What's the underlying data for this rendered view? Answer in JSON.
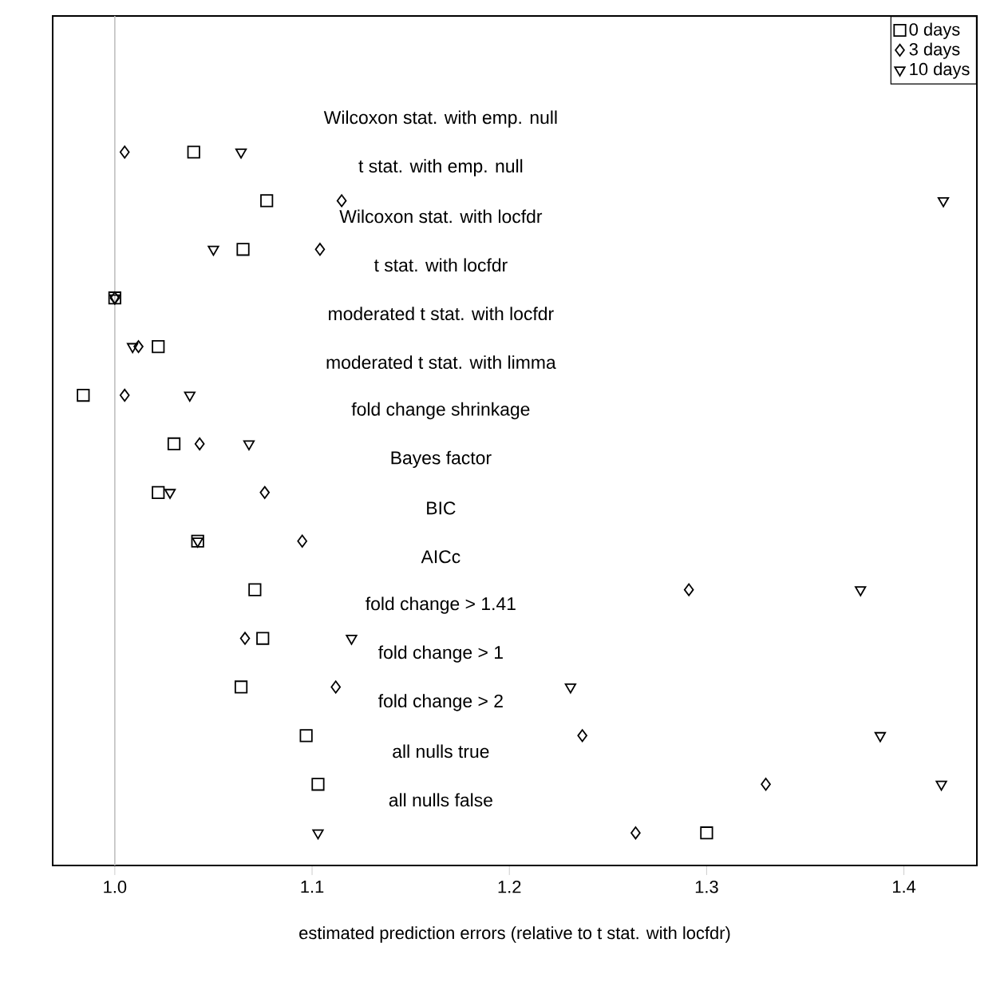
{
  "chart_data": {
    "type": "scatter",
    "orientation": "horizontal",
    "xlabel": "estimated prediction errors (relative to t stat. with locfdr)",
    "categories": [
      "Wilcoxon stat. with emp. null",
      "t stat. with emp. null",
      "Wilcoxon stat. with locfdr",
      "t stat. with locfdr",
      "moderated t stat. with locfdr",
      "moderated t stat. with limma",
      "fold change shrinkage",
      "Bayes factor",
      "BIC",
      "AICc",
      "fold change > 1.41",
      "fold change > 1",
      "fold change > 2",
      "all nulls true",
      "all nulls false"
    ],
    "series": [
      {
        "name": "0 days",
        "color": "#000000",
        "marker": "square",
        "values": [
          1.04,
          1.077,
          1.065,
          1.0,
          1.022,
          0.984,
          1.03,
          1.022,
          1.042,
          1.071,
          1.075,
          1.064,
          1.097,
          1.103,
          1.3
        ]
      },
      {
        "name": "3 days",
        "color": "#000000",
        "marker": "diamond",
        "values": [
          1.005,
          1.115,
          1.104,
          1.0,
          1.012,
          1.005,
          1.043,
          1.076,
          1.095,
          1.291,
          1.066,
          1.112,
          1.237,
          1.33,
          1.264
        ]
      },
      {
        "name": "10 days",
        "color": "#000000",
        "marker": "triangle",
        "values": [
          1.064,
          1.42,
          1.05,
          1.0,
          1.009,
          1.038,
          1.068,
          1.028,
          1.042,
          1.378,
          1.12,
          1.231,
          1.388,
          1.419,
          1.103
        ]
      }
    ],
    "xlim": [
      0.9685,
      1.437
    ],
    "xticks": [
      {
        "value": 1.0,
        "label": "1.0"
      },
      {
        "value": 1.1,
        "label": "1.1"
      },
      {
        "value": 1.2,
        "label": "1.2"
      },
      {
        "value": 1.3,
        "label": "1.3"
      },
      {
        "value": 1.4,
        "label": "1.4"
      }
    ],
    "ref_lines": [
      {
        "axis": "x",
        "value": 1.0,
        "color": "#c0c0c0"
      }
    ],
    "tick_labels": "x",
    "grid": false,
    "legend": "top right"
  }
}
